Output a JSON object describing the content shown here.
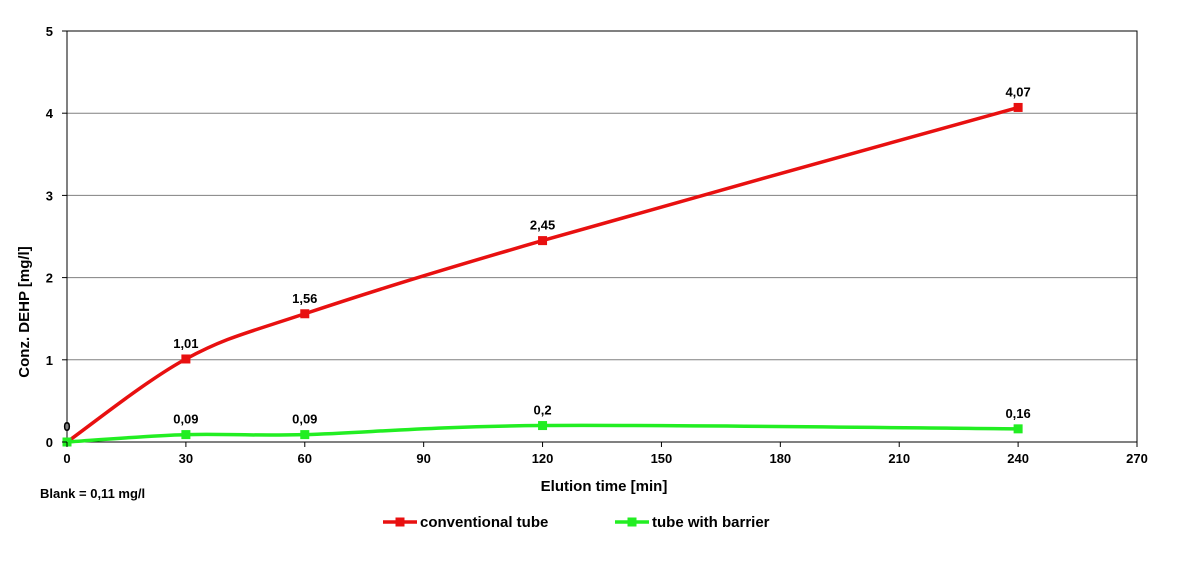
{
  "chart_data": {
    "type": "line",
    "title": "",
    "xlabel": "Elution time [min]",
    "ylabel": "Conz. DEHP [mg/l]",
    "xlim": [
      0,
      270
    ],
    "ylim": [
      0,
      5
    ],
    "xticks": [
      0,
      30,
      60,
      90,
      120,
      150,
      180,
      210,
      240,
      270
    ],
    "yticks": [
      0,
      1,
      2,
      3,
      4,
      5
    ],
    "xtick_labels": [
      "0",
      "30",
      "60",
      "90",
      "120",
      "150",
      "180",
      "210",
      "240",
      "270"
    ],
    "ytick_labels": [
      "0",
      "1",
      "2",
      "3",
      "4",
      "5"
    ],
    "grid": "horizontal",
    "legend_position": "bottom",
    "note": "Blank = 0,11 mg/l",
    "series": [
      {
        "name": "conventional tube",
        "color": "#e81010",
        "x": [
          0,
          30,
          60,
          120,
          240
        ],
        "values": [
          0,
          1.01,
          1.56,
          2.45,
          4.07
        ],
        "labels": [
          "",
          "1,01",
          "1,56",
          "2,45",
          "4,07"
        ]
      },
      {
        "name": "tube with barrier",
        "color": "#22ee22",
        "x": [
          0,
          30,
          60,
          120,
          240
        ],
        "values": [
          0,
          0.09,
          0.09,
          0.2,
          0.16
        ],
        "labels": [
          "0",
          "0,09",
          "0,09",
          "0,2",
          "0,16"
        ]
      }
    ]
  }
}
